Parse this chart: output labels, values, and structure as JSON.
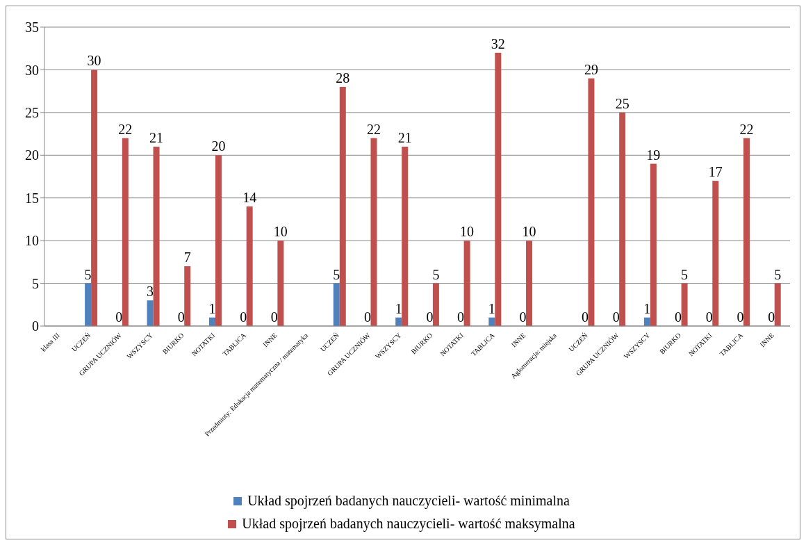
{
  "chart_data": {
    "type": "bar",
    "categories": [
      "klasa III",
      "UCZEŃ",
      "GRUPA UCZNIÓW",
      "WSZYSCY",
      "BIURKO",
      "NOTATKI",
      "TABLICA",
      "INNE",
      "Przedmioty: Edukacja matematyczna / matematyka",
      "UCZEŃ",
      "GRUPA UCZNIÓW",
      "WSZYSCY",
      "BIURKO",
      "NOTATKI",
      "TABLICA",
      "INNE",
      "Aglomeracja: miejska",
      "UCZEŃ",
      "GRUPA UCZNIÓW",
      "WSZYSCY",
      "BIURKO",
      "NOTATKI",
      "TABLICA",
      "INNE"
    ],
    "series": [
      {
        "name": "Układ spojrzeń badanych nauczycieli- wartość minimalna",
        "color": "#4f81bd",
        "values": [
          null,
          5,
          0,
          3,
          0,
          1,
          0,
          0,
          null,
          5,
          0,
          1,
          0,
          0,
          1,
          0,
          null,
          0,
          0,
          1,
          0,
          0,
          0,
          0
        ]
      },
      {
        "name": "Układ spojrzeń badanych nauczycieli- wartość maksymalna",
        "color": "#c0504d",
        "values": [
          null,
          30,
          22,
          21,
          7,
          20,
          14,
          10,
          null,
          28,
          22,
          21,
          5,
          10,
          32,
          10,
          null,
          29,
          25,
          19,
          5,
          17,
          22,
          5
        ]
      }
    ],
    "ylim": [
      0,
      35
    ],
    "yticks": [
      0,
      5,
      10,
      15,
      20,
      25,
      30,
      35
    ],
    "grid": "y",
    "legend": "bottom",
    "data_labels": true
  }
}
